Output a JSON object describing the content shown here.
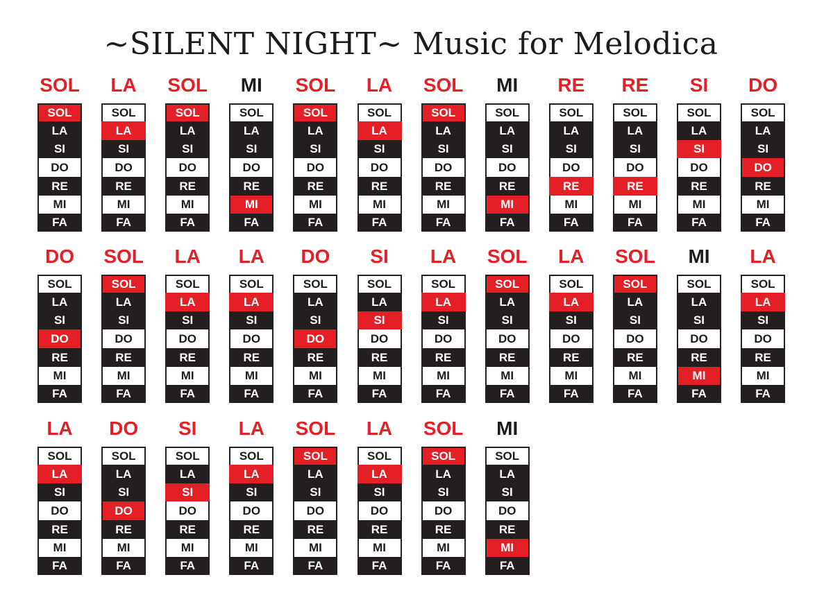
{
  "title": "~SILENT NIGHT~ Music for Melodica",
  "keyboard": {
    "keys": [
      "SOL",
      "LA",
      "SI",
      "DO",
      "RE",
      "MI",
      "FA"
    ],
    "key_colors": [
      "white",
      "black",
      "black",
      "white",
      "black",
      "white",
      "black"
    ]
  },
  "colors": {
    "highlight": "#e51f26",
    "label_red": "#e51f26",
    "label_dark": "#1c1c1c",
    "black_key": "#231f20"
  },
  "rows": [
    [
      {
        "label": "SOL",
        "active": "SOL",
        "label_color": "red"
      },
      {
        "label": "LA",
        "active": "LA",
        "label_color": "red"
      },
      {
        "label": "SOL",
        "active": "SOL",
        "label_color": "red"
      },
      {
        "label": "MI",
        "active": "MI",
        "label_color": "dark"
      },
      {
        "label": "SOL",
        "active": "SOL",
        "label_color": "red"
      },
      {
        "label": "LA",
        "active": "LA",
        "label_color": "red"
      },
      {
        "label": "SOL",
        "active": "SOL",
        "label_color": "red"
      },
      {
        "label": "MI",
        "active": "MI",
        "label_color": "dark"
      },
      {
        "label": "RE",
        "active": "RE",
        "label_color": "red"
      },
      {
        "label": "RE",
        "active": "RE",
        "label_color": "red"
      },
      {
        "label": "SI",
        "active": "SI",
        "label_color": "red"
      },
      {
        "label": "DO",
        "active": "DO",
        "label_color": "red"
      }
    ],
    [
      {
        "label": "DO",
        "active": "DO",
        "label_color": "red"
      },
      {
        "label": "SOL",
        "active": "SOL",
        "label_color": "red"
      },
      {
        "label": "LA",
        "active": "LA",
        "label_color": "red"
      },
      {
        "label": "LA",
        "active": "LA",
        "label_color": "red"
      },
      {
        "label": "DO",
        "active": "DO",
        "label_color": "red"
      },
      {
        "label": "SI",
        "active": "SI",
        "label_color": "red"
      },
      {
        "label": "LA",
        "active": "LA",
        "label_color": "red"
      },
      {
        "label": "SOL",
        "active": "SOL",
        "label_color": "red"
      },
      {
        "label": "LA",
        "active": "LA",
        "label_color": "red"
      },
      {
        "label": "SOL",
        "active": "SOL",
        "label_color": "red"
      },
      {
        "label": "MI",
        "active": "MI",
        "label_color": "dark"
      },
      {
        "label": "LA",
        "active": "LA",
        "label_color": "red"
      }
    ],
    [
      {
        "label": "LA",
        "active": "LA",
        "label_color": "red"
      },
      {
        "label": "DO",
        "active": "DO",
        "label_color": "red"
      },
      {
        "label": "SI",
        "active": "SI",
        "label_color": "red"
      },
      {
        "label": "LA",
        "active": "LA",
        "label_color": "red"
      },
      {
        "label": "SOL",
        "active": "SOL",
        "label_color": "red"
      },
      {
        "label": "LA",
        "active": "LA",
        "label_color": "red"
      },
      {
        "label": "SOL",
        "active": "SOL",
        "label_color": "red"
      },
      {
        "label": "MI",
        "active": "MI",
        "label_color": "dark"
      }
    ]
  ]
}
